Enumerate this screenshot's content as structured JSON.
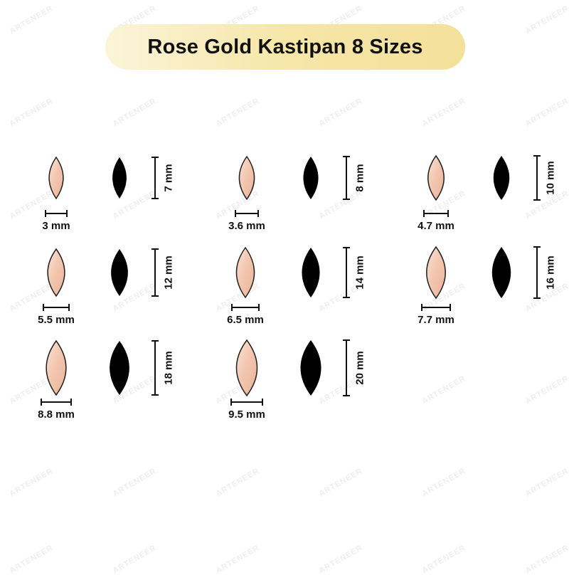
{
  "title": "Rose Gold Kastipan 8 Sizes",
  "watermark": "ARTENEER",
  "colors": {
    "rose_gold": "#f3c7b0",
    "rose_gold_highlight": "#fbe3d6",
    "outline": "#222222",
    "black_stone": "#000000",
    "title_pill": "#f6e6a8"
  },
  "items": [
    {
      "length_label": "7 mm",
      "width_label": "3 mm",
      "length_mm": 7,
      "width_mm": 3
    },
    {
      "length_label": "8 mm",
      "width_label": "3.6 mm",
      "length_mm": 8,
      "width_mm": 3.6
    },
    {
      "length_label": "10 mm",
      "width_label": "4.7 mm",
      "length_mm": 10,
      "width_mm": 4.7
    },
    {
      "length_label": "12 mm",
      "width_label": "5.5 mm",
      "length_mm": 12,
      "width_mm": 5.5
    },
    {
      "length_label": "14 mm",
      "width_label": "6.5 mm",
      "length_mm": 14,
      "width_mm": 6.5
    },
    {
      "length_label": "16 mm",
      "width_label": "7.7 mm",
      "length_mm": 16,
      "width_mm": 7.7
    },
    {
      "length_label": "18 mm",
      "width_label": "8.8 mm",
      "length_mm": 18,
      "width_mm": 8.8
    },
    {
      "length_label": "20 mm",
      "width_label": "9.5 mm",
      "length_mm": 20,
      "width_mm": 9.5
    }
  ]
}
